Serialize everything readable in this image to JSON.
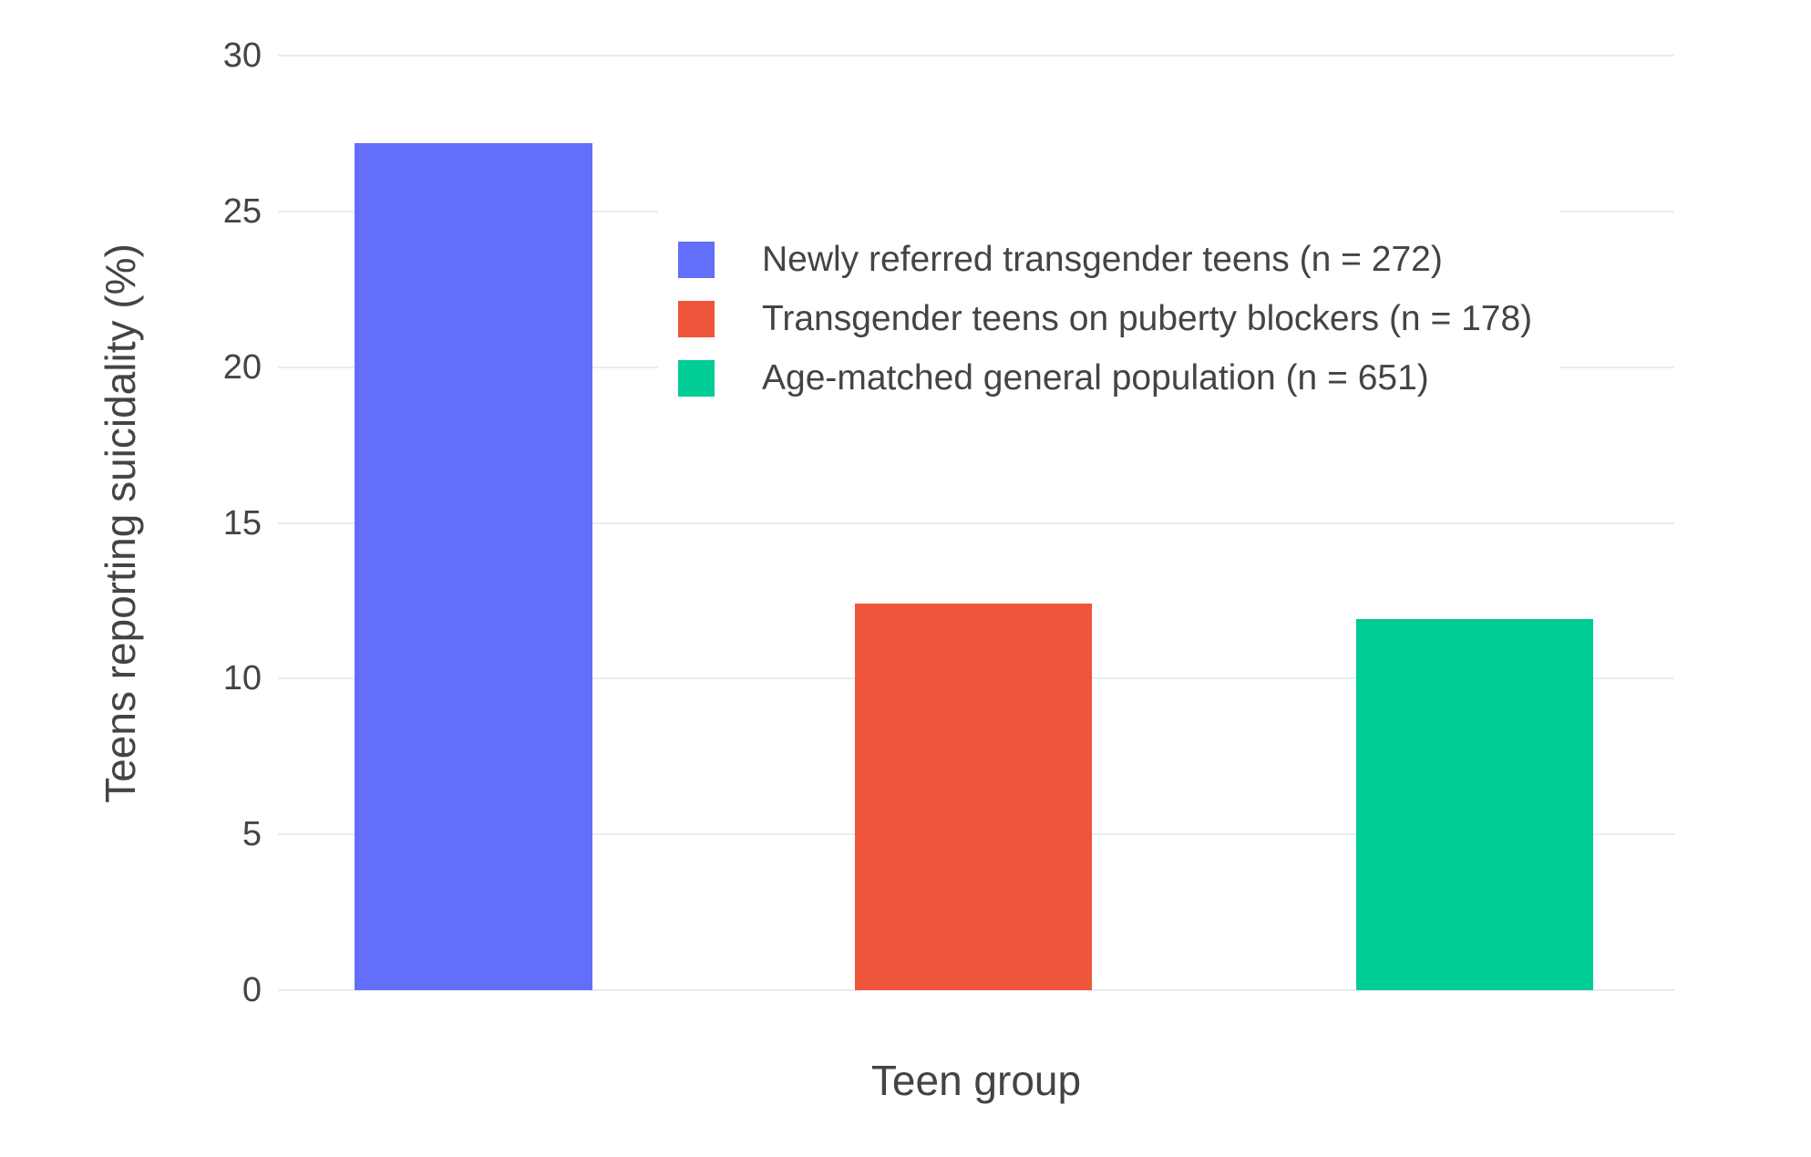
{
  "chart_data": {
    "type": "bar",
    "xlabel": "Teen group",
    "ylabel": "Teens reporting suicidality (%)",
    "ylim": [
      0,
      30
    ],
    "yticks": [
      0,
      5,
      10,
      15,
      20,
      25,
      30
    ],
    "grid": "horizontal",
    "x_tick_labels_visible": false,
    "legend_position": "inside plot, upper center-right, white background",
    "background_color": "#ffffff",
    "gridline_color": "#e7ecf4",
    "text_color": "#444444",
    "series": [
      {
        "name": "Newly referred transgender teens (n = 272)",
        "value": 27.2,
        "color": "#636EFA"
      },
      {
        "name": "Transgender teens on puberty blockers (n = 178)",
        "value": 12.4,
        "color": "#EF553B"
      },
      {
        "name": "Age-matched general population (n = 651)",
        "value": 11.9,
        "color": "#00CC96"
      }
    ]
  }
}
